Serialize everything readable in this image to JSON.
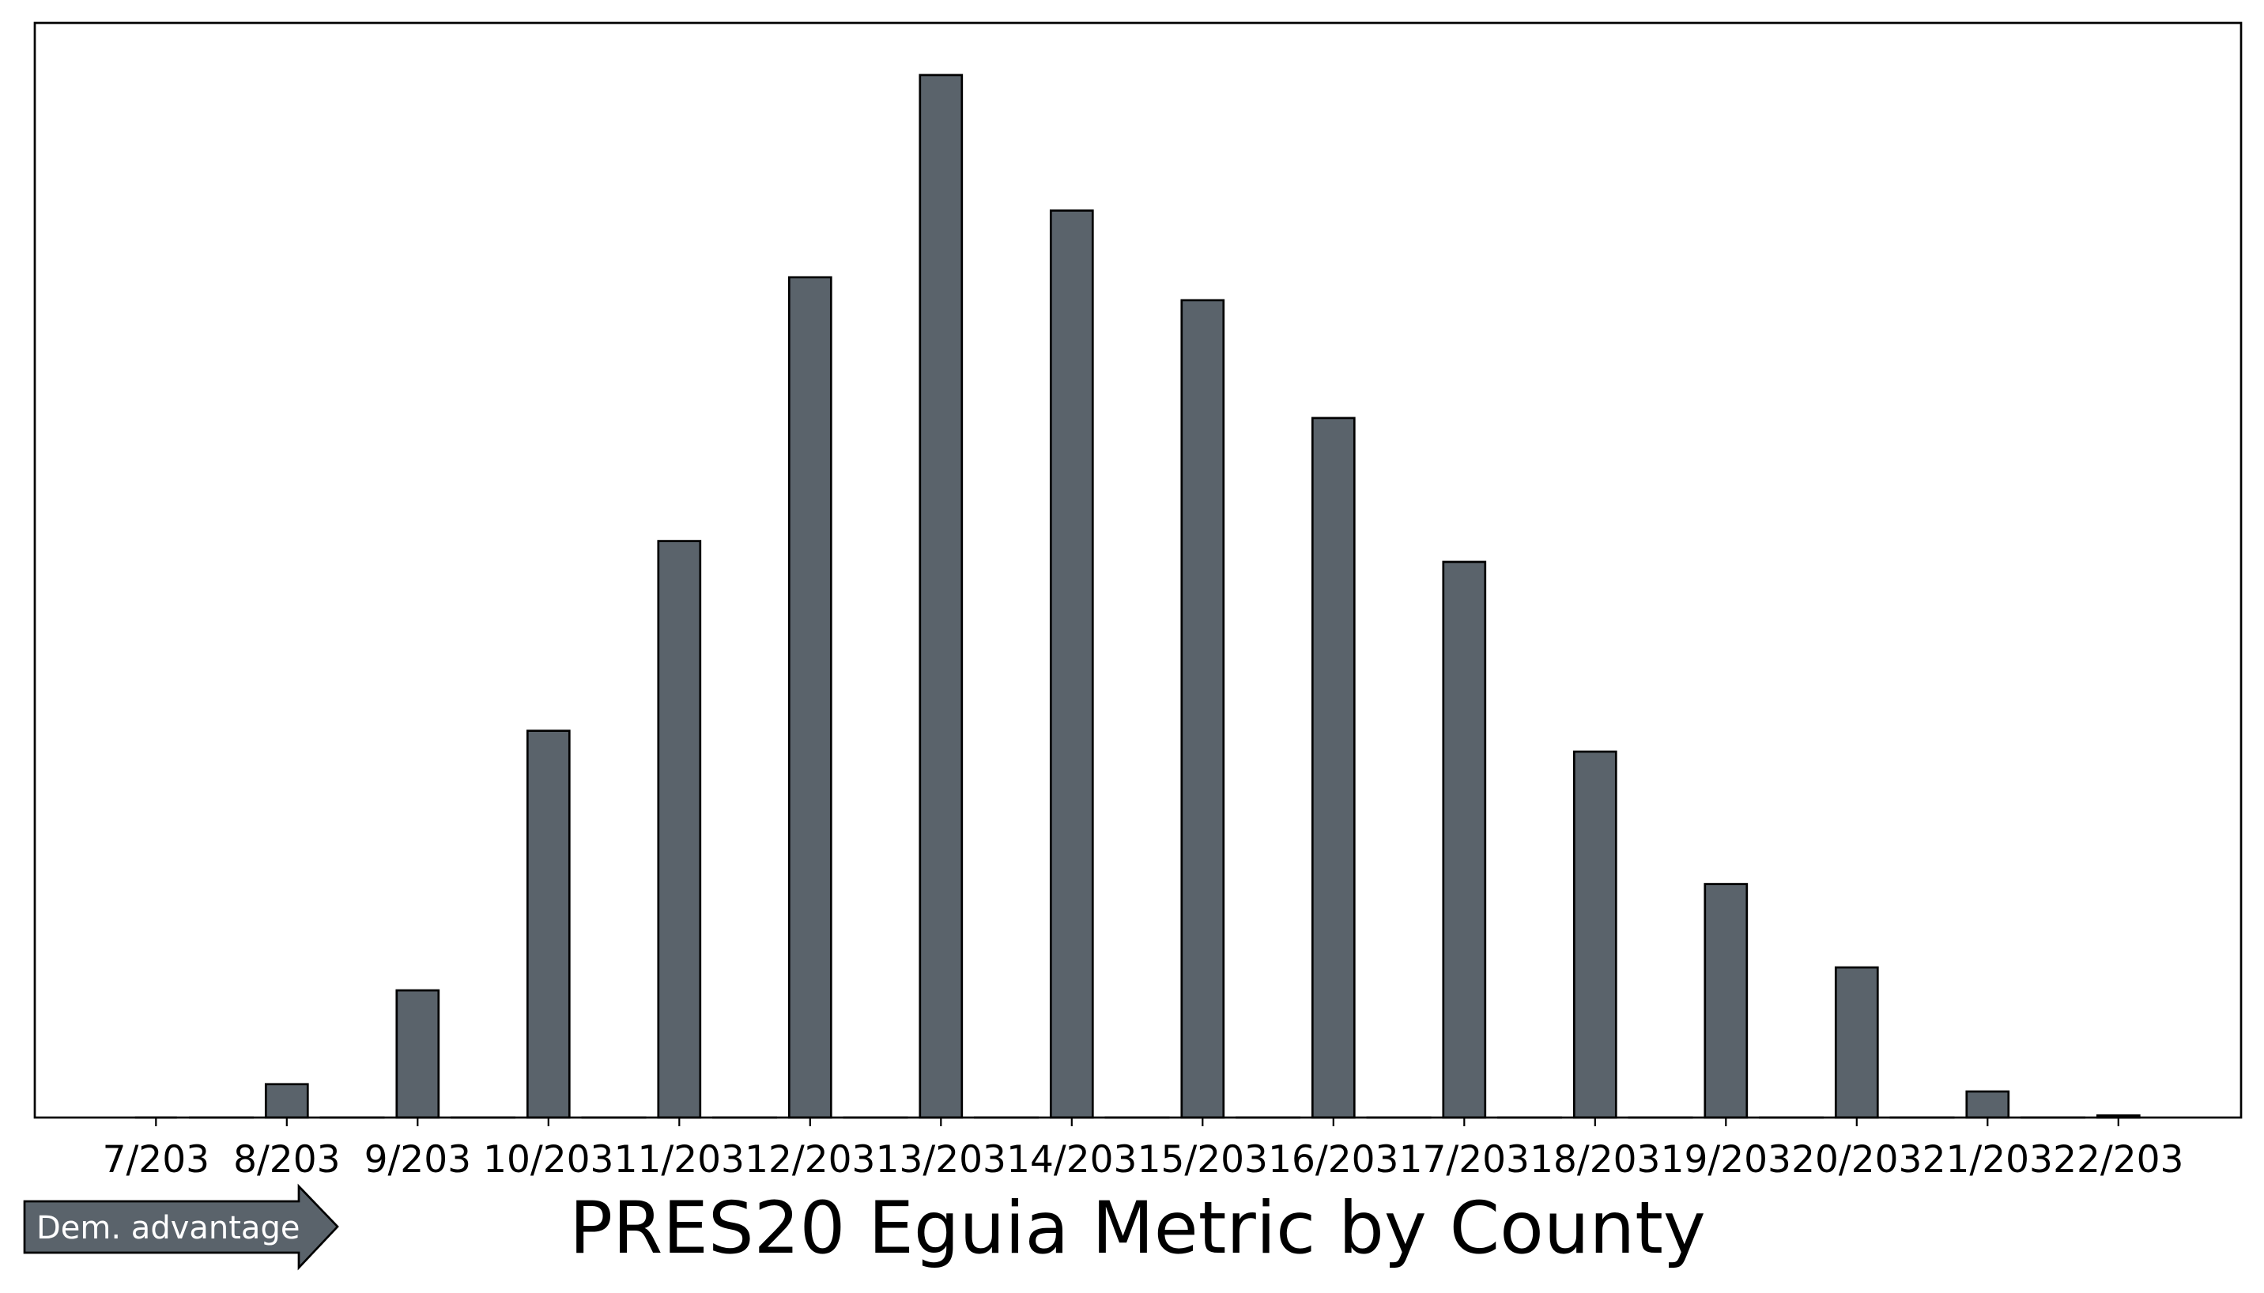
{
  "chart_data": {
    "type": "bar",
    "title": "PRES20 Eguia Metric by County",
    "xlabel": "",
    "ylabel": "",
    "categories": [
      "7/203",
      "8/203",
      "9/203",
      "10/203",
      "11/203",
      "12/203",
      "13/203",
      "14/203",
      "15/203",
      "16/203",
      "17/203",
      "18/203",
      "19/203",
      "20/203",
      "21/203",
      "22/203"
    ],
    "values": [
      0,
      3.2,
      12.2,
      37.1,
      55.3,
      80.6,
      100,
      87.0,
      78.4,
      67.1,
      53.3,
      35.1,
      22.4,
      14.4,
      2.5,
      0.2
    ],
    "ylim": [
      0,
      105
    ],
    "y_ticks_shown": false,
    "grid": false,
    "legend": "none"
  },
  "badge": {
    "label": "Dem. advantage",
    "shape": "arrow-right"
  },
  "colors": {
    "bar": "#5a636b",
    "edge": "#000000",
    "badge_fill": "#5a636b",
    "badge_text": "#ffffff"
  }
}
